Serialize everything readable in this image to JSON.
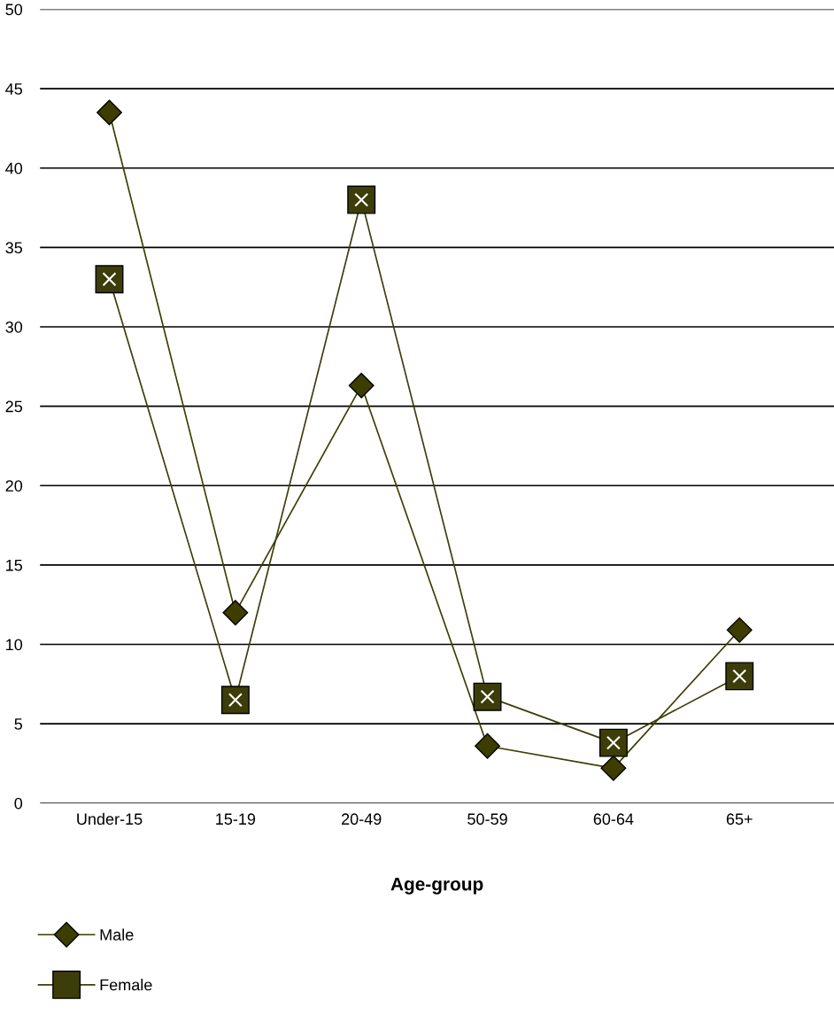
{
  "chart_data": {
    "type": "line",
    "xlabel": "Age-group",
    "categories": [
      "Under-15",
      "15-19",
      "20-49",
      "50-59",
      "60-64",
      "65+"
    ],
    "series": [
      {
        "name": "Male",
        "color": "#3d3d00",
        "marker": "diamond",
        "values": [
          43.5,
          12,
          26.3,
          3.6,
          2.2,
          10.9
        ]
      },
      {
        "name": "Female",
        "color": "#3d3d0a",
        "marker": "square",
        "values": [
          33,
          6.5,
          38,
          6.7,
          3.8,
          8
        ]
      }
    ],
    "ylim": [
      0,
      50
    ],
    "yticks": [
      0,
      5,
      10,
      15,
      20,
      25,
      30,
      35,
      40,
      45,
      50
    ],
    "grid": "y",
    "legend": "bottom left",
    "line_style": "solid"
  }
}
